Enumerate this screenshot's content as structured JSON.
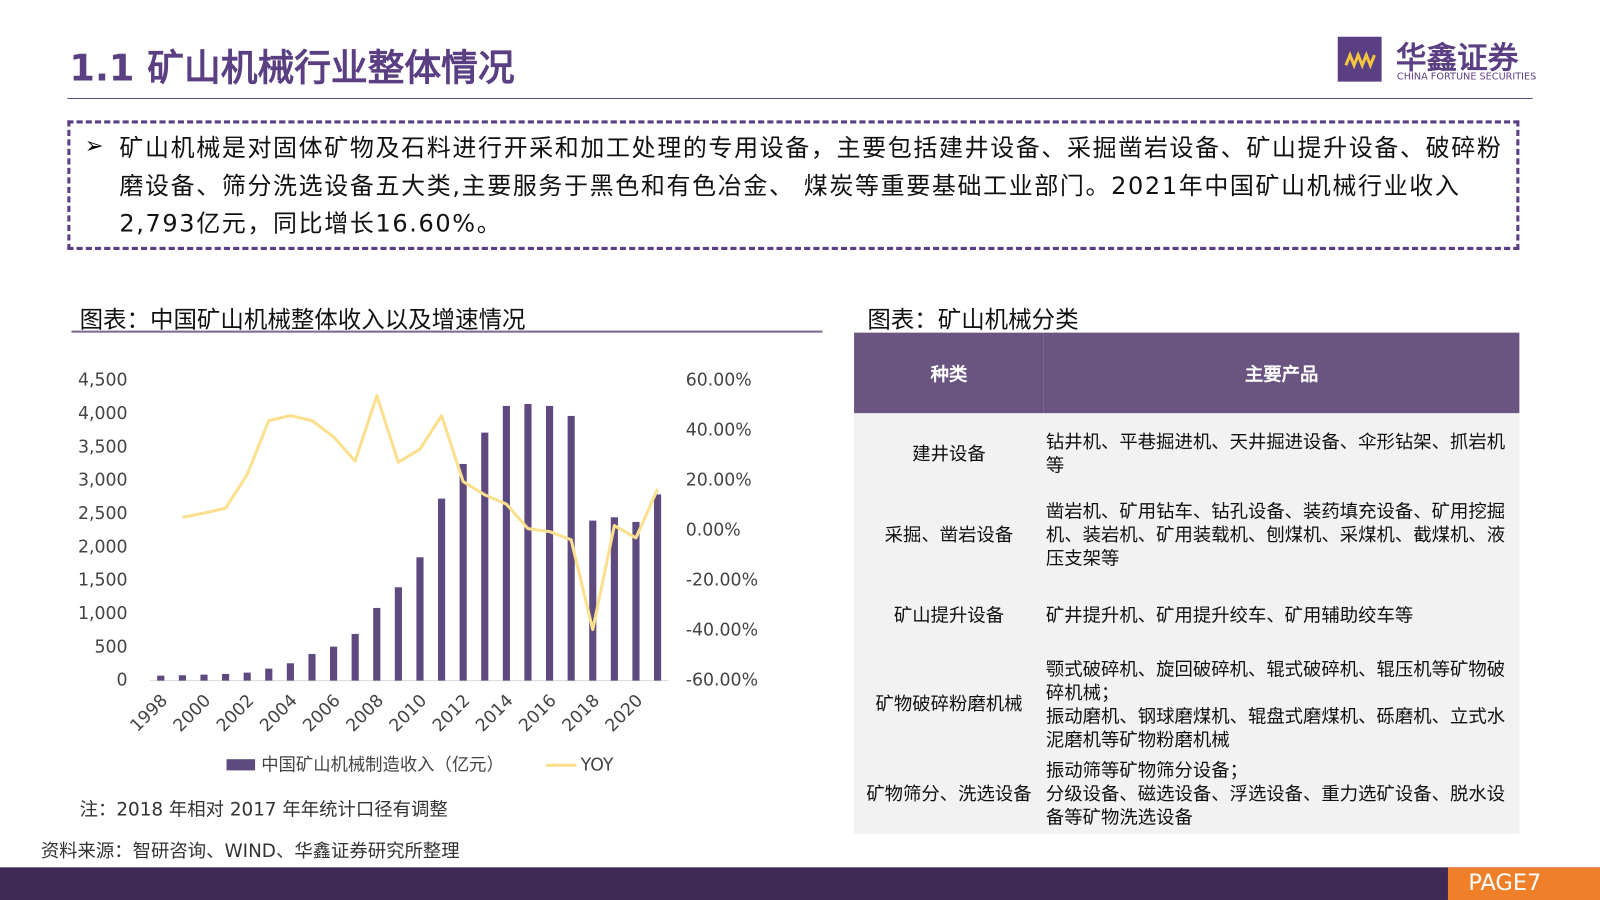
{
  "header": {
    "title": "1.1 矿山机械行业整体情况",
    "logo_name": "华鑫证券",
    "logo_subtitle": "CHINA FORTUNE SECURITIES"
  },
  "intro": {
    "text": "矿山机械是对固体矿物及石料进行开采和加工处理的专用设备，主要包括建井设备、采掘凿岩设备、矿山提升设备、破碎粉磨设备、筛分洗选设备五大类,主要服务于黑色和有色冶金、 煤炭等重要基础工业部门。2021年中国矿山机械行业收入2,793亿元，同比增长16.60%。"
  },
  "chart_data": {
    "type": "bar",
    "title": "图表：中国矿山机械整体收入以及增速情况",
    "categories": [
      "1998",
      null,
      "2000",
      null,
      "2002",
      null,
      "2004",
      null,
      "2006",
      null,
      "2008",
      null,
      "2010",
      null,
      "2012",
      null,
      "2014",
      null,
      "2016",
      null,
      "2018",
      null,
      "2020",
      null
    ],
    "series": [
      {
        "name": "中国矿山机械制造收入（亿元）",
        "color": "#5e4a7e",
        "values": [
          75,
          80,
          90,
          100,
          120,
          180,
          260,
          400,
          510,
          700,
          1090,
          1400,
          1850,
          2730,
          3250,
          3720,
          4120,
          4150,
          4120,
          3970,
          2400,
          2450,
          2380,
          2793
        ]
      },
      {
        "name": "YOY",
        "color": "#fbe08f",
        "type": "line",
        "axis": "y2",
        "values": [
          null,
          5.3,
          7,
          9,
          22.4,
          44,
          46,
          44,
          37.5,
          27.8,
          54,
          27.3,
          32.6,
          46,
          19.6,
          14.3,
          10.6,
          0.8,
          -0.4,
          -3.7,
          -39.6,
          2,
          -2.9,
          16.6
        ]
      }
    ],
    "ylim": [
      0,
      4500
    ],
    "yticks": [
      0,
      500,
      {
        "value": 1000,
        "label": "1,000"
      },
      {
        "value": 1500,
        "label": "1,500"
      },
      {
        "value": 2000,
        "label": "2,000"
      },
      {
        "value": 2500,
        "label": "2,500"
      },
      {
        "value": 3000,
        "label": "3,000"
      },
      {
        "value": 3500,
        "label": "3,500"
      },
      {
        "value": 4000,
        "label": "4,000"
      },
      {
        "value": 4500,
        "label": "4,500"
      }
    ],
    "y2lim": [
      -60,
      60
    ],
    "y2ticks": [
      {
        "value": -60,
        "label": "-60.00%"
      },
      {
        "value": -40,
        "label": "-40.00%"
      },
      {
        "value": -20,
        "label": "-20.00%"
      },
      {
        "value": 0,
        "label": "0.00%"
      },
      {
        "value": 20,
        "label": "20.00%"
      },
      {
        "value": 40,
        "label": "40.00%"
      },
      {
        "value": 60,
        "label": "60.00%"
      }
    ],
    "grid": false,
    "legend": "bottom"
  },
  "note": "注：2018 年相对 2017 年年统计口径有调整",
  "table": {
    "title": "图表：矿山机械分类",
    "headers": [
      "种类",
      "主要产品"
    ],
    "rows": [
      [
        "建井设备",
        [
          "钻井机、平巷掘进机、天井掘进设备、伞形钻架、抓岩机等"
        ]
      ],
      [
        "采掘、凿岩设备",
        [
          "凿岩机、矿用钻车、钻孔设备、装药填充设备、矿用挖掘机、装岩机、矿用装载机、刨煤机、采煤机、截煤机、液压支架等"
        ]
      ],
      [
        "矿山提升设备",
        [
          "矿井提升机、矿用提升绞车、矿用辅助绞车等"
        ]
      ],
      [
        "矿物破碎粉磨机械",
        [
          "颚式破碎机、旋回破碎机、辊式破碎机、辊压机等矿物破碎机械；",
          "振动磨机、钢球磨煤机、辊盘式磨煤机、砾磨机、立式水泥磨机等矿物粉磨机械"
        ]
      ],
      [
        "矿物筛分、洗选设备",
        [
          "振动筛等矿物筛分设备；",
          "分级设备、磁选设备、浮选设备、重力选矿设备、脱水设备等矿物洗选设备"
        ]
      ]
    ]
  },
  "source": "资料来源：智研咨询、WIND、华鑫证券研究所整理",
  "page": "PAGE7"
}
